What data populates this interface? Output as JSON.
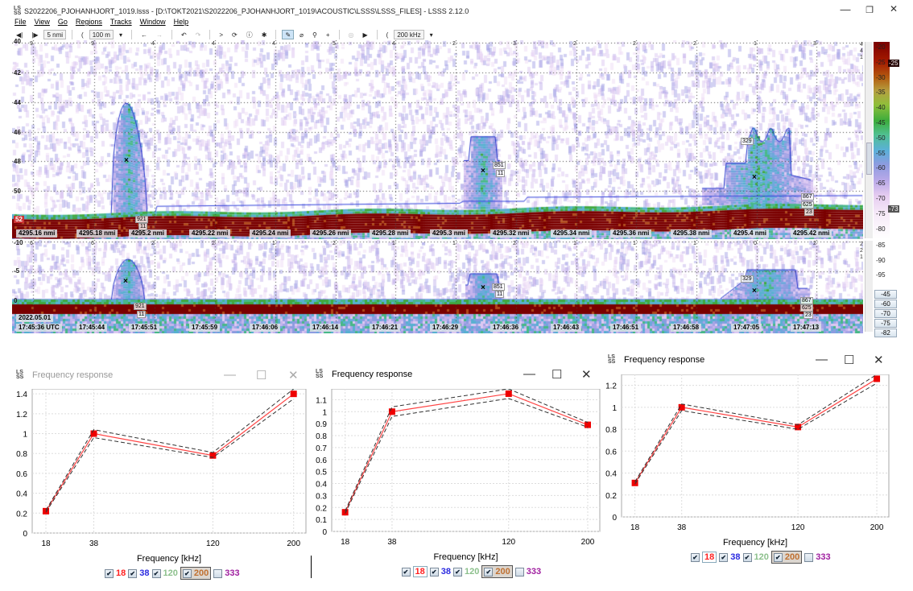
{
  "window": {
    "title": "S2022206_PJOHANHJORT_1019.lsss - [D:\\TOKT2021\\S2022206_PJOHANHJORT_1019\\ACOUSTIC\\LSSS\\LSSS_FILES] - LSSS 2.12.0",
    "app_icon": "LS SS",
    "min": "—",
    "max": "❐",
    "close": "✕"
  },
  "menu": [
    "File",
    "View",
    "Go",
    "Regions",
    "Tracks",
    "Window",
    "Help"
  ],
  "toolbar": {
    "distance": "5 nmi",
    "range": "100 m",
    "frequency": "200 kHz"
  },
  "echogram_top": {
    "depths": [
      "40",
      "42",
      "44",
      "46",
      "48",
      "50",
      "52"
    ],
    "counts": [
      "9",
      "9",
      "4",
      "4",
      "4",
      "5",
      "4",
      "2",
      "3",
      "2",
      "2",
      "2",
      "1",
      "3"
    ],
    "right_counts": [
      "4",
      "4",
      "1"
    ],
    "distances": [
      "4295.16 nmi",
      "4295.18 nmi",
      "4295.2 nmi",
      "4295.22 nmi",
      "4295.24 nmi",
      "4295.26 nmi",
      "4295.28 nmi",
      "4295.3 nmi",
      "4295.32 nmi",
      "4295.34 nmi",
      "4295.36 nmi",
      "4295.38 nmi",
      "4295.4 nmi",
      "4295.42 nmi"
    ],
    "regions": [
      {
        "labels": [
          "921",
          "11"
        ]
      },
      {
        "labels": [
          "851",
          "11"
        ]
      },
      {
        "labels": [
          "329",
          "867",
          "625",
          "23"
        ]
      }
    ]
  },
  "echogram_bottom": {
    "depths": [
      "-10",
      "-5",
      "0"
    ],
    "counts": [
      "6",
      "6",
      "2",
      "2",
      "1",
      "2",
      "1",
      "1",
      "2",
      "1",
      "1",
      "1",
      "0",
      "2"
    ],
    "right_counts": [
      "2",
      "2",
      "1"
    ],
    "date": "2022.05.01",
    "times": [
      "17:45:36 UTC",
      "17:45:44",
      "17:45:51",
      "17:45:59",
      "17:46:06",
      "17:46:14",
      "17:46:21",
      "17:46:29",
      "17:46:36",
      "17:46:43",
      "17:46:51",
      "17:46:58",
      "17:47:05",
      "17:47:13"
    ],
    "regions": [
      {
        "labels": [
          "921",
          "11"
        ]
      },
      {
        "labels": [
          "851",
          "11"
        ]
      },
      {
        "labels": [
          "329",
          "867",
          "625",
          "23"
        ]
      }
    ]
  },
  "colorbar": {
    "labels": [
      "-20",
      "-25",
      "-30",
      "-35",
      "-40",
      "-45",
      "-50",
      "-55",
      "-60",
      "-65",
      "-70",
      "-75",
      "-80",
      "-85",
      "-90",
      "-95"
    ],
    "marker_high": "-25",
    "marker_low": "-73",
    "buttons": [
      "-45",
      "-60",
      "-70",
      "-75",
      "-82"
    ]
  },
  "freq_windows": [
    {
      "title": "Frequency response",
      "legend": [
        "18",
        "38",
        "120",
        "200",
        "333"
      ],
      "legend_checked": [
        true,
        true,
        true,
        true,
        false
      ]
    },
    {
      "title": "Frequency response",
      "legend": [
        "18",
        "38",
        "120",
        "200",
        "333"
      ],
      "legend_checked": [
        true,
        true,
        true,
        true,
        false
      ]
    },
    {
      "title": "Frequency response",
      "legend": [
        "18",
        "38",
        "120",
        "200",
        "333"
      ],
      "legend_checked": [
        true,
        true,
        true,
        true,
        false
      ]
    }
  ],
  "legend_colors": [
    "#ff2020",
    "#2a2ae0",
    "#8cc08c",
    "#c07030",
    "#a020a0"
  ],
  "chart_data": [
    {
      "type": "line",
      "title": "Frequency response",
      "xlabel": "Frequency [kHz]",
      "ylabel": "",
      "categories": [
        "18",
        "38",
        "120",
        "200"
      ],
      "series": [
        {
          "name": "mean",
          "values": [
            0.22,
            1.0,
            0.78,
            1.4
          ]
        },
        {
          "name": "upper",
          "values": [
            0.23,
            1.04,
            0.81,
            1.45
          ]
        },
        {
          "name": "lower",
          "values": [
            0.21,
            0.96,
            0.76,
            1.35
          ]
        }
      ],
      "yticks": [
        "0",
        "0.2",
        "0.4",
        "0.6",
        "0.8",
        "1",
        "1.2",
        "1.4"
      ],
      "ylim": [
        0,
        1.45
      ],
      "grid": true
    },
    {
      "type": "line",
      "title": "Frequency response",
      "xlabel": "Frequency [kHz]",
      "ylabel": "",
      "categories": [
        "18",
        "38",
        "120",
        "200"
      ],
      "series": [
        {
          "name": "mean",
          "values": [
            0.16,
            1.0,
            1.15,
            0.89
          ]
        },
        {
          "name": "upper",
          "values": [
            0.17,
            1.04,
            1.19,
            0.91
          ]
        },
        {
          "name": "lower",
          "values": [
            0.15,
            0.96,
            1.11,
            0.87
          ]
        }
      ],
      "yticks": [
        "0",
        "0.1",
        "0.2",
        "0.3",
        "0.4",
        "0.5",
        "0.6",
        "0.7",
        "0.8",
        "0.9",
        "1",
        "1.1"
      ],
      "ylim": [
        0,
        1.19
      ],
      "grid": true
    },
    {
      "type": "line",
      "title": "Frequency response",
      "xlabel": "Frequency [kHz]",
      "ylabel": "",
      "categories": [
        "18",
        "38",
        "120",
        "200"
      ],
      "series": [
        {
          "name": "mean",
          "values": [
            0.31,
            1.0,
            0.82,
            1.26
          ]
        },
        {
          "name": "upper",
          "values": [
            0.32,
            1.03,
            0.84,
            1.3
          ]
        },
        {
          "name": "lower",
          "values": [
            0.3,
            0.97,
            0.8,
            1.22
          ]
        }
      ],
      "yticks": [
        "0",
        "0.2",
        "0.4",
        "0.6",
        "0.8",
        "1",
        "1.2"
      ],
      "ylim": [
        0,
        1.3
      ],
      "grid": true
    }
  ]
}
